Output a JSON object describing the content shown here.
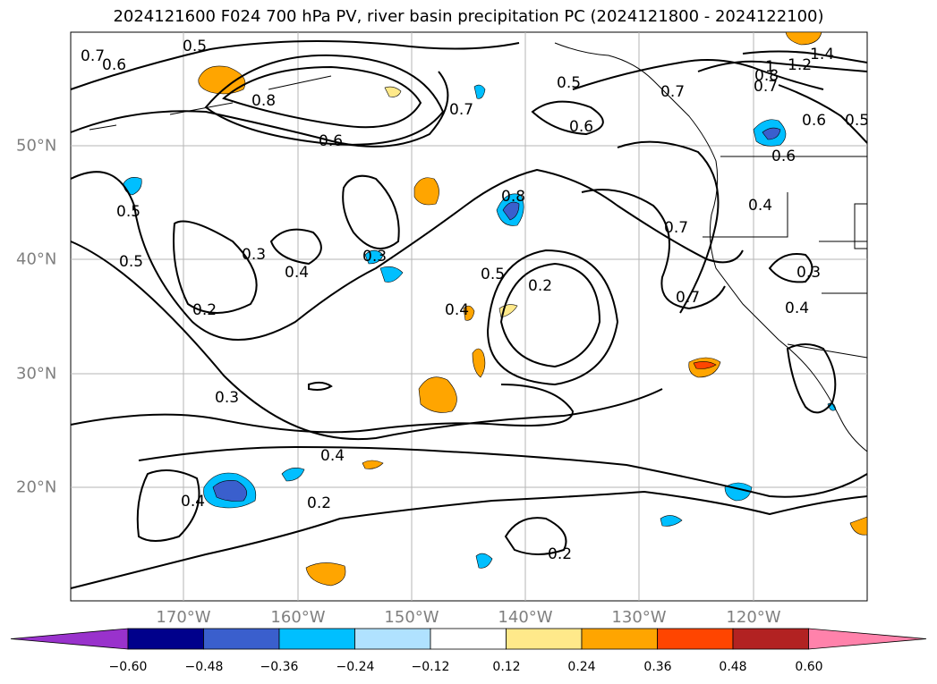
{
  "title": "2024121600 F024 700 hPa PV, river basin precipitation PC (2024121800 - 2024122100)",
  "map": {
    "lon_labels": [
      "170°W",
      "160°W",
      "150°W",
      "140°W",
      "130°W",
      "120°W"
    ],
    "lat_labels": [
      "50°N",
      "40°N",
      "30°N",
      "20°N"
    ],
    "contour_labels": [
      {
        "text": "0.7"
      },
      {
        "text": "0.6"
      },
      {
        "text": "0.5"
      },
      {
        "text": "0.8"
      },
      {
        "text": "0.6"
      },
      {
        "text": "0.7"
      },
      {
        "text": "0.5"
      },
      {
        "text": "0.6"
      },
      {
        "text": "0.7"
      },
      {
        "text": "1.4"
      },
      {
        "text": "1.2"
      },
      {
        "text": "1"
      },
      {
        "text": "0.8"
      },
      {
        "text": "0.7"
      },
      {
        "text": "0.6"
      },
      {
        "text": "0.5"
      },
      {
        "text": "0.5"
      },
      {
        "text": "0.5"
      },
      {
        "text": "0.3"
      },
      {
        "text": "0.4"
      },
      {
        "text": "0.2"
      },
      {
        "text": "0.3"
      },
      {
        "text": "0.8"
      },
      {
        "text": "0.5"
      },
      {
        "text": "0.4"
      },
      {
        "text": "0.2"
      },
      {
        "text": "0.7"
      },
      {
        "text": "0.7"
      },
      {
        "text": "0.4"
      },
      {
        "text": "0.3"
      },
      {
        "text": "0.4"
      },
      {
        "text": "0.3"
      },
      {
        "text": "0.4"
      },
      {
        "text": "0.4"
      },
      {
        "text": "0.2"
      },
      {
        "text": "0.2"
      },
      {
        "text": "0.6"
      }
    ]
  },
  "colorbar": {
    "tick_labels": [
      "−0.60",
      "−0.48",
      "−0.36",
      "−0.24",
      "−0.12",
      "0.12",
      "0.24",
      "0.36",
      "0.48",
      "0.60"
    ],
    "colors": [
      "#9932cc",
      "#00008b",
      "#3a5fcd",
      "#00bfff",
      "#b0e2ff",
      "#ffffff",
      "#ffe98a",
      "#ffa500",
      "#ff4500",
      "#b22222",
      "#ff82ab"
    ]
  }
}
